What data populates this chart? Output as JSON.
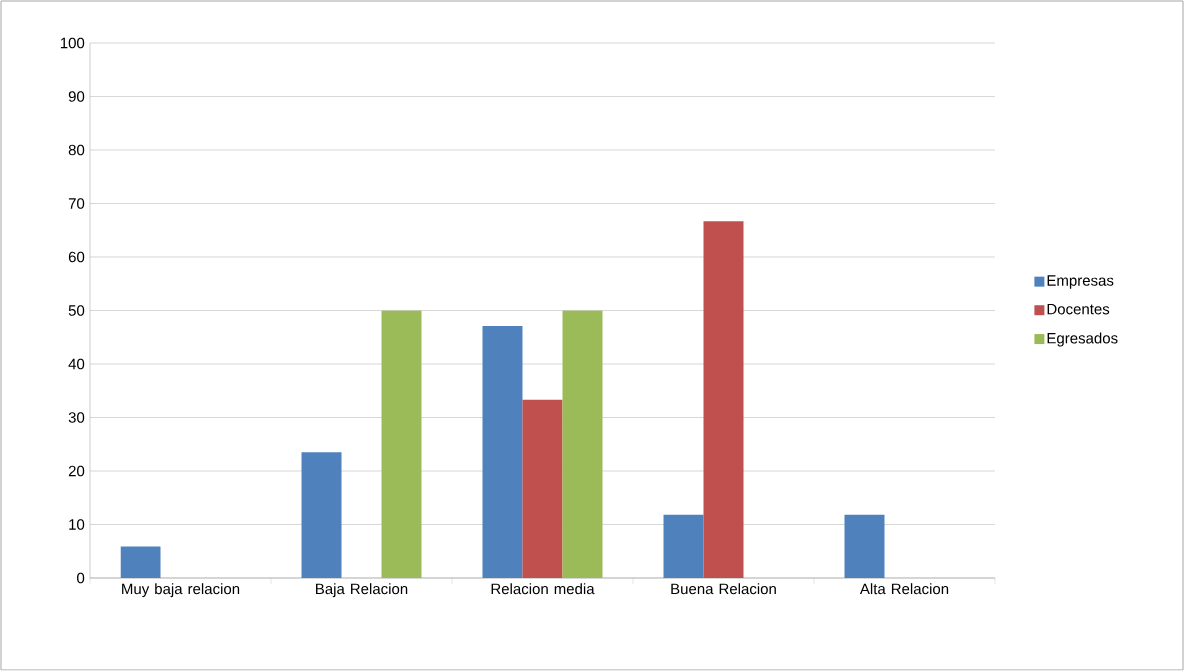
{
  "chart_data": {
    "type": "bar",
    "categories": [
      "Muy baja relacion",
      "Baja Relacion",
      "Relacion media",
      "Buena Relacion",
      "Alta Relacion"
    ],
    "series": [
      {
        "name": "Empresas",
        "color": "#4f81bd",
        "values": [
          5.9,
          23.5,
          47.1,
          11.8,
          11.8
        ]
      },
      {
        "name": "Docentes",
        "color": "#c0504d",
        "values": [
          0,
          0,
          33.3,
          66.7,
          0
        ]
      },
      {
        "name": "Egresados",
        "color": "#9bbb59",
        "values": [
          0,
          50,
          50,
          0,
          0
        ]
      }
    ],
    "ylim": [
      0,
      100
    ],
    "yticks": [
      0,
      10,
      20,
      30,
      40,
      50,
      60,
      70,
      80,
      90,
      100
    ],
    "grid": "y",
    "legend": "right"
  }
}
